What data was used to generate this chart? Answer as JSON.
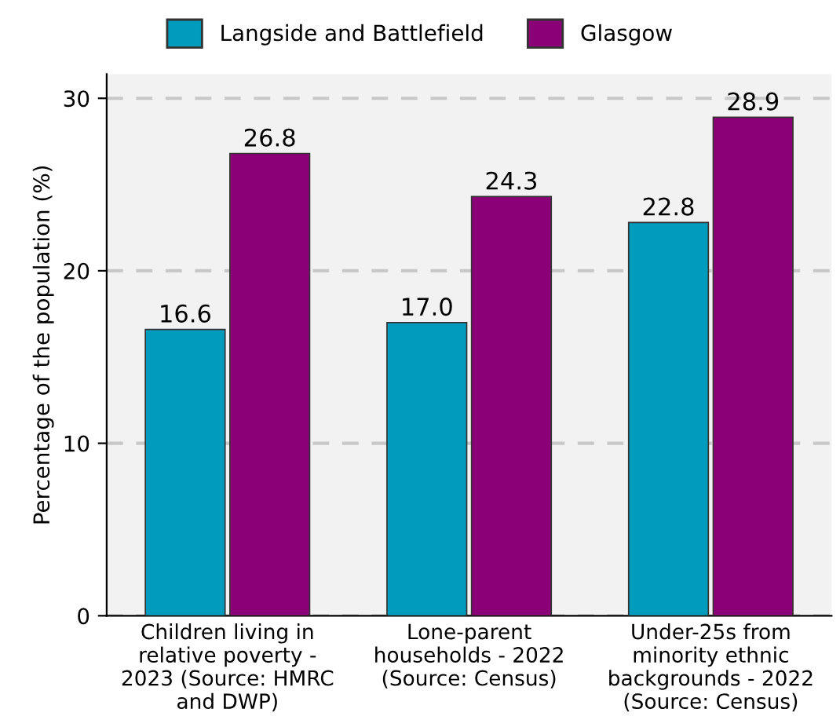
{
  "chart_data": {
    "type": "bar",
    "ylabel": "Percentage of the population (%)",
    "categories": [
      "Children living in\nrelative poverty -\n2023 (Source: HMRC\nand DWP)",
      "Lone-parent\nhouseholds - 2022\n(Source: Census)",
      "Under-25s from\nminority ethnic\nbackgrounds - 2022\n(Source: Census)"
    ],
    "series": [
      {
        "name": "Langside and Battlefield",
        "color": "#009bbd",
        "values": [
          16.6,
          17.0,
          22.8
        ],
        "value_labels": [
          "16.6",
          "17.0",
          "22.8"
        ]
      },
      {
        "name": "Glasgow",
        "color": "#8b0077",
        "values": [
          26.8,
          24.3,
          28.9
        ],
        "value_labels": [
          "26.8",
          "24.3",
          "28.9"
        ]
      }
    ],
    "ylim": [
      0,
      31.4
    ],
    "yticks": [
      0,
      10,
      20,
      30
    ],
    "grid": "y",
    "legend": "top"
  }
}
